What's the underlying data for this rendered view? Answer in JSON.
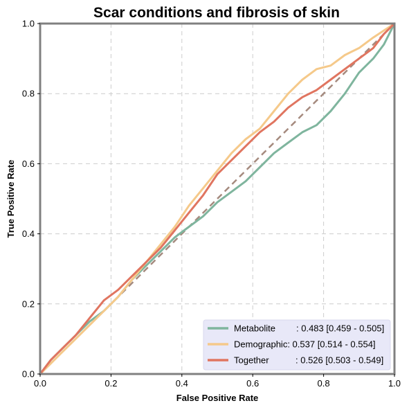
{
  "chart_data": {
    "type": "line",
    "title": "Scar conditions and fibrosis of skin",
    "xlabel": "False Positive Rate",
    "ylabel": "True Positive Rate",
    "xlim": [
      0,
      1
    ],
    "ylim": [
      0,
      1
    ],
    "xticks": [
      "0.0",
      "0.2",
      "0.4",
      "0.6",
      "0.8",
      "1.0"
    ],
    "yticks": [
      "0.0",
      "0.2",
      "0.4",
      "0.6",
      "0.8",
      "1.0"
    ],
    "grid": true,
    "legend_position": "bottom-right",
    "legend_colors": {
      "background": "#e8e8f8"
    },
    "diagonal": {
      "x": [
        0,
        1
      ],
      "y": [
        0,
        1
      ],
      "color": "#a58a7e",
      "style": "dashed"
    },
    "series": [
      {
        "name": "Metabolite",
        "label_prefix": "Metabolite",
        "label_value": ": 0.483 [0.459 - 0.505]",
        "color": "#7fb59e",
        "x": [
          0,
          0.03,
          0.06,
          0.1,
          0.14,
          0.18,
          0.22,
          0.26,
          0.3,
          0.34,
          0.38,
          0.42,
          0.46,
          0.5,
          0.54,
          0.58,
          0.62,
          0.66,
          0.7,
          0.74,
          0.78,
          0.82,
          0.86,
          0.9,
          0.94,
          0.97,
          1
        ],
        "y": [
          0,
          0.04,
          0.07,
          0.11,
          0.15,
          0.18,
          0.22,
          0.27,
          0.31,
          0.35,
          0.39,
          0.42,
          0.45,
          0.49,
          0.52,
          0.55,
          0.59,
          0.63,
          0.66,
          0.69,
          0.71,
          0.75,
          0.8,
          0.86,
          0.9,
          0.94,
          1
        ]
      },
      {
        "name": "Demographic",
        "label_prefix": "Demographic",
        "label_value": ": 0.537 [0.514 - 0.554]",
        "color": "#f5c98a",
        "x": [
          0,
          0.03,
          0.06,
          0.1,
          0.14,
          0.18,
          0.22,
          0.26,
          0.3,
          0.34,
          0.38,
          0.42,
          0.46,
          0.5,
          0.54,
          0.58,
          0.62,
          0.66,
          0.7,
          0.74,
          0.78,
          0.82,
          0.86,
          0.9,
          0.94,
          0.97,
          1
        ],
        "y": [
          0,
          0.03,
          0.06,
          0.1,
          0.14,
          0.18,
          0.22,
          0.27,
          0.32,
          0.37,
          0.42,
          0.48,
          0.53,
          0.58,
          0.63,
          0.67,
          0.7,
          0.75,
          0.8,
          0.84,
          0.87,
          0.88,
          0.91,
          0.93,
          0.96,
          0.98,
          1
        ]
      },
      {
        "name": "Together",
        "label_prefix": "Together",
        "label_value": ": 0.526 [0.503 - 0.549]",
        "color": "#e07560",
        "x": [
          0,
          0.03,
          0.06,
          0.1,
          0.14,
          0.18,
          0.22,
          0.26,
          0.3,
          0.34,
          0.38,
          0.42,
          0.46,
          0.5,
          0.54,
          0.58,
          0.62,
          0.66,
          0.7,
          0.74,
          0.78,
          0.82,
          0.86,
          0.9,
          0.94,
          0.97,
          1
        ],
        "y": [
          0,
          0.04,
          0.07,
          0.11,
          0.16,
          0.21,
          0.24,
          0.28,
          0.32,
          0.36,
          0.41,
          0.46,
          0.51,
          0.57,
          0.61,
          0.65,
          0.69,
          0.72,
          0.76,
          0.79,
          0.81,
          0.84,
          0.87,
          0.9,
          0.93,
          0.97,
          1
        ]
      }
    ]
  }
}
